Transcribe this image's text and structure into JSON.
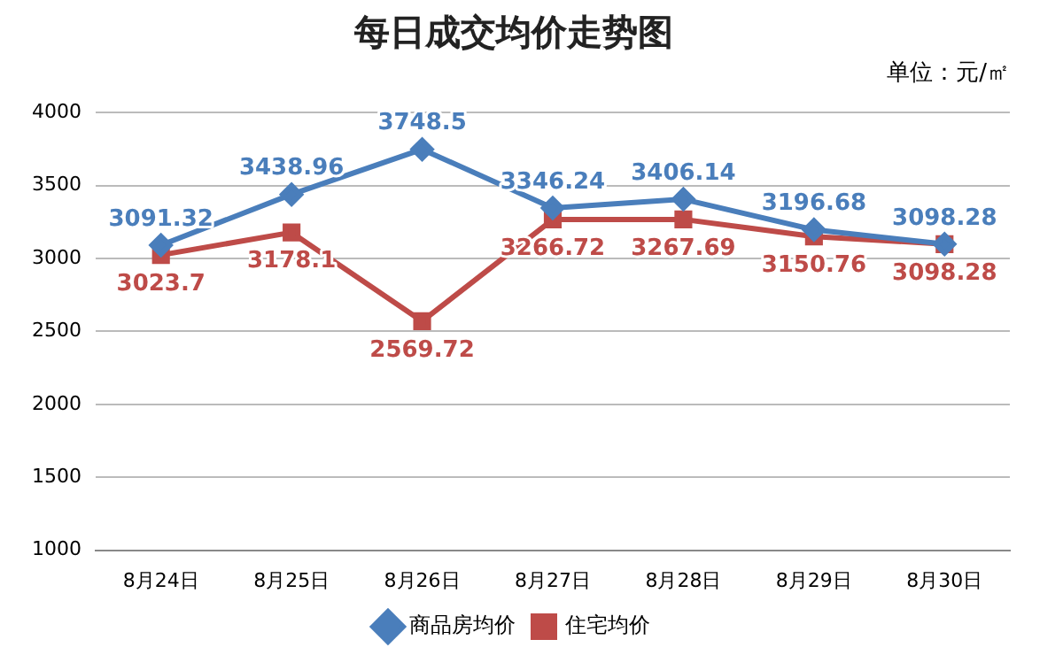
{
  "chart_data": {
    "type": "line",
    "title": "每日成交均价走势图",
    "subtitle": "单位：元/㎡",
    "categories": [
      "8月24日",
      "8月25日",
      "8月26日",
      "8月27日",
      "8月28日",
      "8月29日",
      "8月30日"
    ],
    "series": [
      {
        "name": "商品房均价",
        "color": "#4a7ebb",
        "marker": "diamond",
        "values": [
          3091.32,
          3438.96,
          3748.5,
          3346.24,
          3406.14,
          3196.68,
          3098.28
        ]
      },
      {
        "name": "住宅均价",
        "color": "#be4b48",
        "marker": "square",
        "values": [
          3023.7,
          3178.1,
          2569.72,
          3266.72,
          3267.69,
          3150.76,
          3098.28
        ]
      }
    ],
    "ylim": [
      1000,
      4000
    ],
    "yticks": [
      1000,
      1500,
      2000,
      2500,
      3000,
      3500,
      4000
    ],
    "grid": "y",
    "legend": "bottom",
    "data_labels": true,
    "line_style": "solid"
  }
}
